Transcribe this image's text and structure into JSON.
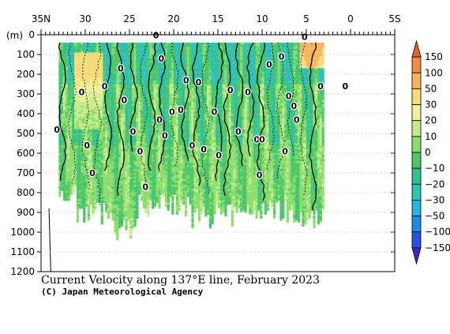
{
  "chart_data": {
    "type": "heatmap",
    "title": "Current Velocity along 137°E line, February 2023",
    "credit": "(C) Japan Meteorological Agency",
    "y_unit_label": "(m)",
    "x_axis": {
      "range": [
        35,
        -5
      ],
      "tick_labels": [
        {
          "value": 35,
          "label": "35N"
        },
        {
          "value": 30,
          "label": "30"
        },
        {
          "value": 25,
          "label": "25"
        },
        {
          "value": 20,
          "label": "20"
        },
        {
          "value": 15,
          "label": "15"
        },
        {
          "value": 10,
          "label": "10"
        },
        {
          "value": 5,
          "label": "5"
        },
        {
          "value": 0,
          "label": "0"
        },
        {
          "value": -5,
          "label": "5S"
        }
      ]
    },
    "y_axis": {
      "range": [
        0,
        1200
      ],
      "ticks": [
        0,
        100,
        200,
        300,
        400,
        500,
        600,
        700,
        800,
        900,
        1000,
        1100,
        1200
      ]
    },
    "colorbar": {
      "levels": [
        {
          "label": "150",
          "color": "#e8602a"
        },
        {
          "label": "100",
          "color": "#f08c3c"
        },
        {
          "label": "50",
          "color": "#f5b55a"
        },
        {
          "label": "30",
          "color": "#f5dc78"
        },
        {
          "label": "20",
          "color": "#f0f09a"
        },
        {
          "label": "10",
          "color": "#c6ec8a"
        },
        {
          "label": "0",
          "color": "#8cdc6e"
        },
        {
          "label": "−10",
          "color": "#4cc864"
        },
        {
          "label": "−20",
          "color": "#32c08c"
        },
        {
          "label": "−30",
          "color": "#2cc4b4"
        },
        {
          "label": "−50",
          "color": "#28b4dc"
        },
        {
          "label": "−100",
          "color": "#1e8ce6"
        },
        {
          "label": "−150",
          "color": "#2850e6"
        },
        {
          "label": "",
          "color": "#3c28c8"
        }
      ]
    },
    "zero_contour_labels": [
      {
        "lat": 27.8,
        "depth": 260
      },
      {
        "lat": 26.0,
        "depth": 170
      },
      {
        "lat": 30.4,
        "depth": 290
      },
      {
        "lat": 29.2,
        "depth": 700
      },
      {
        "lat": 25.6,
        "depth": 330
      },
      {
        "lat": 24.6,
        "depth": 490
      },
      {
        "lat": 23.8,
        "depth": 590
      },
      {
        "lat": 22.0,
        "depth": 1
      },
      {
        "lat": 21.4,
        "depth": 120
      },
      {
        "lat": 20.2,
        "depth": 390
      },
      {
        "lat": 19.2,
        "depth": 380
      },
      {
        "lat": 21.6,
        "depth": 430
      },
      {
        "lat": 21.0,
        "depth": 510
      },
      {
        "lat": 18.6,
        "depth": 230
      },
      {
        "lat": 17.9,
        "depth": 560
      },
      {
        "lat": 17.2,
        "depth": 240
      },
      {
        "lat": 16.6,
        "depth": 580
      },
      {
        "lat": 15.4,
        "depth": 390
      },
      {
        "lat": 14.9,
        "depth": 610
      },
      {
        "lat": 13.6,
        "depth": 280
      },
      {
        "lat": 12.7,
        "depth": 490
      },
      {
        "lat": 11.6,
        "depth": 290
      },
      {
        "lat": 10.6,
        "depth": 530
      },
      {
        "lat": 10.0,
        "depth": 530
      },
      {
        "lat": 10.3,
        "depth": 710
      },
      {
        "lat": 9.2,
        "depth": 150
      },
      {
        "lat": 7.8,
        "depth": 110
      },
      {
        "lat": 7.4,
        "depth": 590
      },
      {
        "lat": 7.0,
        "depth": 310
      },
      {
        "lat": 6.4,
        "depth": 360
      },
      {
        "lat": 6.1,
        "depth": 430
      },
      {
        "lat": 5.2,
        "depth": 10
      },
      {
        "lat": 3.4,
        "depth": 260
      },
      {
        "lat": 0.6,
        "depth": 260
      },
      {
        "lat": 29.8,
        "depth": 560
      },
      {
        "lat": 33.2,
        "depth": 480
      },
      {
        "lat": 23.2,
        "depth": 770
      }
    ],
    "zero_label_text": "0",
    "warm_core": {
      "lat": 4.0,
      "depth": 90,
      "value": 60
    }
  }
}
